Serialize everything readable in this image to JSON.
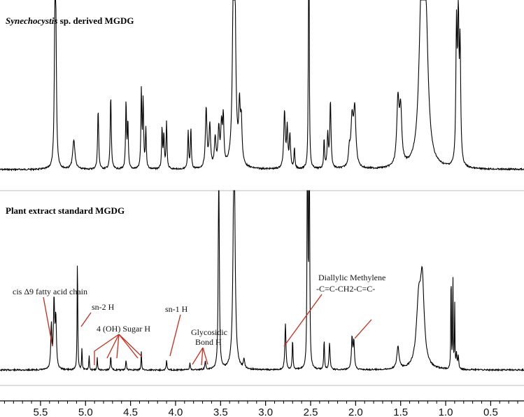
{
  "page": {
    "background": "#ffffff",
    "trace_color": "#000000",
    "annotation_color": "#cc2a1a",
    "separator_color": "#bdbdbd"
  },
  "chart_data": [
    {
      "type": "line",
      "title_italic": "Synechocystis",
      "title_rest": " sp. derived MGDG",
      "xlabel": "",
      "ylabel": "",
      "x_reversed": true,
      "xlim": [
        5.95,
        0.13
      ],
      "peaks": [
        {
          "x": 5.34,
          "h": 1.0,
          "w": 0.008
        },
        {
          "x": 5.33,
          "h": 0.92,
          "w": 0.008
        },
        {
          "x": 5.13,
          "h": 0.22,
          "w": 0.015
        },
        {
          "x": 4.86,
          "h": 0.45,
          "w": 0.007
        },
        {
          "x": 4.72,
          "h": 0.55,
          "w": 0.007
        },
        {
          "x": 4.55,
          "h": 0.5,
          "w": 0.006
        },
        {
          "x": 4.53,
          "h": 0.35,
          "w": 0.006
        },
        {
          "x": 4.38,
          "h": 0.58,
          "w": 0.006
        },
        {
          "x": 4.36,
          "h": 0.5,
          "w": 0.006
        },
        {
          "x": 4.33,
          "h": 0.3,
          "w": 0.006
        },
        {
          "x": 4.15,
          "h": 0.3,
          "w": 0.006
        },
        {
          "x": 4.13,
          "h": 0.25,
          "w": 0.006
        },
        {
          "x": 4.1,
          "h": 0.35,
          "w": 0.006
        },
        {
          "x": 3.86,
          "h": 0.28,
          "w": 0.006
        },
        {
          "x": 3.83,
          "h": 0.3,
          "w": 0.006
        },
        {
          "x": 3.66,
          "h": 0.45,
          "w": 0.01
        },
        {
          "x": 3.62,
          "h": 0.32,
          "w": 0.01
        },
        {
          "x": 3.56,
          "h": 0.22,
          "w": 0.01
        },
        {
          "x": 3.52,
          "h": 0.28,
          "w": 0.01
        },
        {
          "x": 3.49,
          "h": 0.3,
          "w": 0.01
        },
        {
          "x": 3.47,
          "h": 0.35,
          "w": 0.008
        },
        {
          "x": 3.35,
          "h": 3.0,
          "w": 0.012
        },
        {
          "x": 3.29,
          "h": 0.4,
          "w": 0.01
        },
        {
          "x": 3.27,
          "h": 0.3,
          "w": 0.01
        },
        {
          "x": 2.79,
          "h": 0.42,
          "w": 0.01
        },
        {
          "x": 2.76,
          "h": 0.3,
          "w": 0.008
        },
        {
          "x": 2.73,
          "h": 0.25,
          "w": 0.008
        },
        {
          "x": 2.68,
          "h": 0.15,
          "w": 0.006
        },
        {
          "x": 2.52,
          "h": 3.0,
          "w": 0.004
        },
        {
          "x": 2.35,
          "h": 0.22,
          "w": 0.006
        },
        {
          "x": 2.31,
          "h": 0.25,
          "w": 0.008
        },
        {
          "x": 2.28,
          "h": 0.5,
          "w": 0.008
        },
        {
          "x": 2.07,
          "h": 0.12,
          "w": 0.01
        },
        {
          "x": 2.04,
          "h": 0.35,
          "w": 0.015
        },
        {
          "x": 2.01,
          "h": 0.42,
          "w": 0.015
        },
        {
          "x": 1.53,
          "h": 0.48,
          "w": 0.015
        },
        {
          "x": 1.5,
          "h": 0.4,
          "w": 0.015
        },
        {
          "x": 1.27,
          "h": 1.2,
          "w": 0.03
        },
        {
          "x": 1.22,
          "h": 1.0,
          "w": 0.03
        },
        {
          "x": 0.88,
          "h": 1.0,
          "w": 0.008
        },
        {
          "x": 0.86,
          "h": 1.1,
          "w": 0.008
        },
        {
          "x": 0.84,
          "h": 0.85,
          "w": 0.008
        }
      ]
    },
    {
      "type": "line",
      "title": "Plant extract standard MGDG",
      "xlabel": "",
      "ylabel": "",
      "x_reversed": true,
      "xlim": [
        5.95,
        0.13
      ],
      "x_ticks": [
        5.5,
        5.0,
        4.5,
        4.0,
        3.5,
        3.0,
        2.5,
        2.0,
        1.5,
        1.0,
        0.5
      ],
      "x_tick_labels": [
        "5.5",
        "5.0",
        "4.5",
        "4.0",
        "3.5",
        "3.0",
        "2.5",
        "2.0",
        "1.5",
        "1.0",
        "0.5"
      ],
      "peaks": [
        {
          "x": 5.38,
          "h": 0.35,
          "w": 0.007
        },
        {
          "x": 5.35,
          "h": 0.55,
          "w": 0.008
        },
        {
          "x": 5.33,
          "h": 0.4,
          "w": 0.008
        },
        {
          "x": 5.09,
          "h": 0.95,
          "w": 0.004
        },
        {
          "x": 5.04,
          "h": 0.18,
          "w": 0.004
        },
        {
          "x": 4.96,
          "h": 0.12,
          "w": 0.004
        },
        {
          "x": 4.87,
          "h": 0.1,
          "w": 0.004
        },
        {
          "x": 4.72,
          "h": 0.12,
          "w": 0.005
        },
        {
          "x": 4.55,
          "h": 0.08,
          "w": 0.005
        },
        {
          "x": 4.38,
          "h": 0.15,
          "w": 0.004
        },
        {
          "x": 4.1,
          "h": 0.08,
          "w": 0.005
        },
        {
          "x": 3.84,
          "h": 0.06,
          "w": 0.005
        },
        {
          "x": 3.67,
          "h": 0.07,
          "w": 0.006
        },
        {
          "x": 3.52,
          "h": 2.0,
          "w": 0.006
        },
        {
          "x": 3.35,
          "h": 2.0,
          "w": 0.012
        },
        {
          "x": 3.24,
          "h": 0.08,
          "w": 0.008
        },
        {
          "x": 2.78,
          "h": 0.38,
          "w": 0.007
        },
        {
          "x": 2.7,
          "h": 0.25,
          "w": 0.005
        },
        {
          "x": 2.535,
          "h": 3.0,
          "w": 0.004
        },
        {
          "x": 2.515,
          "h": 3.0,
          "w": 0.004
        },
        {
          "x": 2.35,
          "h": 0.25,
          "w": 0.005
        },
        {
          "x": 2.29,
          "h": 0.22,
          "w": 0.007
        },
        {
          "x": 2.04,
          "h": 0.25,
          "w": 0.008
        },
        {
          "x": 2.02,
          "h": 0.22,
          "w": 0.008
        },
        {
          "x": 1.53,
          "h": 0.18,
          "w": 0.015
        },
        {
          "x": 1.3,
          "h": 0.5,
          "w": 0.03
        },
        {
          "x": 1.26,
          "h": 0.65,
          "w": 0.025
        },
        {
          "x": 0.94,
          "h": 0.9,
          "w": 0.003
        },
        {
          "x": 0.92,
          "h": 0.85,
          "w": 0.003
        },
        {
          "x": 0.9,
          "h": 0.55,
          "w": 0.003
        },
        {
          "x": 0.88,
          "h": 0.12,
          "w": 0.006
        },
        {
          "x": 0.86,
          "h": 0.1,
          "w": 0.006
        }
      ],
      "annotations": [
        {
          "id": "cis",
          "text": "cis Δ9 fatty acid chain"
        },
        {
          "id": "sn2",
          "text": "sn-2 H"
        },
        {
          "id": "sugar",
          "text": "4 (OH) Sugar H"
        },
        {
          "id": "sn1",
          "text": "sn-1 H"
        },
        {
          "id": "glyco1",
          "text": "Glycosidic"
        },
        {
          "id": "glyco2",
          "text": "Bond H"
        },
        {
          "id": "dial1",
          "text": "Diallylic Methylene"
        },
        {
          "id": "dial2",
          "text": "-C=C-CH2-C=C-"
        }
      ]
    }
  ]
}
